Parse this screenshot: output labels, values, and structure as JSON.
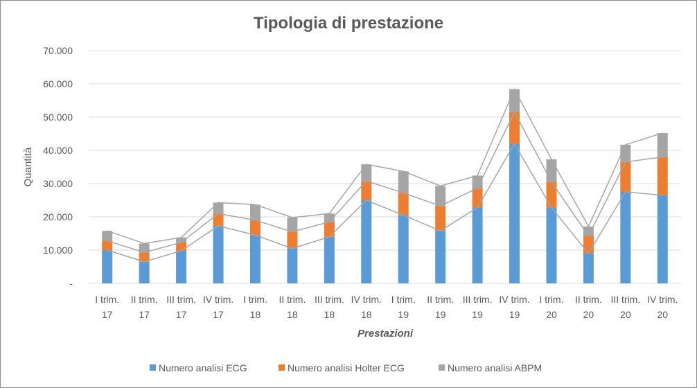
{
  "chart_data": {
    "type": "bar",
    "stacked": true,
    "title": "Tipologia di prestazione",
    "xlabel": "Prestazioni",
    "ylabel": "Quantità",
    "ylim": [
      0,
      70000
    ],
    "yticks": [
      "-",
      "10.000",
      "20.000",
      "30.000",
      "40.000",
      "50.000",
      "60.000",
      "70.000"
    ],
    "grid": true,
    "legend": "bottom",
    "categories": [
      [
        "I trim.",
        "17"
      ],
      [
        "II trim.",
        "17"
      ],
      [
        "III trim.",
        "17"
      ],
      [
        "IV trim.",
        "17"
      ],
      [
        "I trim.",
        "18"
      ],
      [
        "II trim.",
        "18"
      ],
      [
        "III trim.",
        "18"
      ],
      [
        "IV trim.",
        "18"
      ],
      [
        "I trim.",
        "19"
      ],
      [
        "II trim.",
        "19"
      ],
      [
        "III trim.",
        "19"
      ],
      [
        "IV trim.",
        "19"
      ],
      [
        "I trim.",
        "20"
      ],
      [
        "II trim.",
        "20"
      ],
      [
        "III trim.",
        "20"
      ],
      [
        "IV trim.",
        "20"
      ]
    ],
    "series": [
      {
        "name": "Numero analisi ECG",
        "color": "#5B9BD5",
        "values": [
          10000,
          6500,
          9800,
          17300,
          14500,
          10500,
          14000,
          25000,
          20500,
          15800,
          22800,
          42000,
          22800,
          9000,
          27500,
          26500
        ]
      },
      {
        "name": "Numero analisi Holter ECG",
        "color": "#ED7D31",
        "values": [
          2800,
          2800,
          2500,
          3700,
          4500,
          5000,
          4500,
          5800,
          6700,
          7500,
          5800,
          9500,
          7700,
          5300,
          9000,
          11500
        ]
      },
      {
        "name": "Numero analisi ABPM",
        "color": "#A5A5A5",
        "values": [
          3000,
          2700,
          1500,
          3300,
          4700,
          4300,
          2500,
          5000,
          6500,
          6000,
          3800,
          6900,
          6800,
          2800,
          5200,
          7200
        ]
      }
    ],
    "series_line_color": "#A5A5A5"
  }
}
